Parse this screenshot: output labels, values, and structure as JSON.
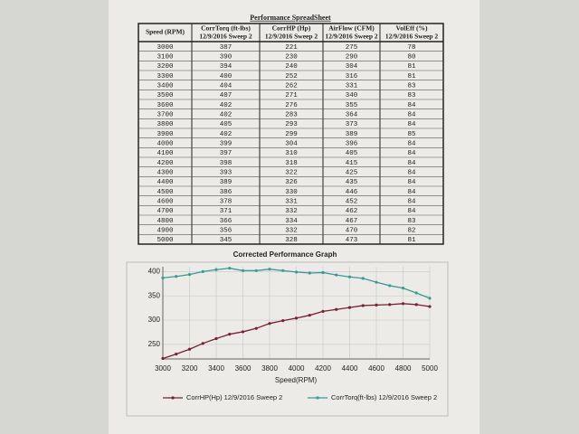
{
  "table": {
    "title": "Performance SpreadSheet",
    "columns": [
      {
        "name": "Speed (RPM)"
      },
      {
        "name": "CorrTorq (ft-lbs)",
        "sub": "12/9/2016 Sweep 2"
      },
      {
        "name": "CorrHP (Hp)",
        "sub": "12/9/2016 Sweep 2"
      },
      {
        "name": "AirFlow (CFM)",
        "sub": "12/9/2016 Sweep 2"
      },
      {
        "name": "VolEff (%)",
        "sub": "12/9/2016 Sweep 2"
      }
    ],
    "rows": [
      [
        3000,
        387,
        221,
        275,
        78
      ],
      [
        3100,
        390,
        230,
        290,
        80
      ],
      [
        3200,
        394,
        240,
        304,
        81
      ],
      [
        3300,
        400,
        252,
        316,
        81
      ],
      [
        3400,
        404,
        262,
        331,
        83
      ],
      [
        3500,
        407,
        271,
        340,
        83
      ],
      [
        3600,
        402,
        276,
        355,
        84
      ],
      [
        3700,
        402,
        283,
        364,
        84
      ],
      [
        3800,
        405,
        293,
        373,
        84
      ],
      [
        3900,
        402,
        299,
        389,
        85
      ],
      [
        4000,
        399,
        304,
        396,
        84
      ],
      [
        4100,
        397,
        310,
        405,
        84
      ],
      [
        4200,
        398,
        318,
        415,
        84
      ],
      [
        4300,
        393,
        322,
        425,
        84
      ],
      [
        4400,
        389,
        326,
        435,
        84
      ],
      [
        4500,
        386,
        330,
        446,
        84
      ],
      [
        4600,
        378,
        331,
        452,
        84
      ],
      [
        4700,
        371,
        332,
        462,
        84
      ],
      [
        4800,
        366,
        334,
        467,
        83
      ],
      [
        4900,
        356,
        332,
        470,
        82
      ],
      [
        5000,
        345,
        328,
        473,
        81
      ]
    ]
  },
  "chart_data": {
    "type": "line",
    "title": "Corrected Performance Graph",
    "x_label": "Speed(RPM)",
    "x": [
      3000,
      3100,
      3200,
      3300,
      3400,
      3500,
      3600,
      3700,
      3800,
      3900,
      4000,
      4100,
      4200,
      4300,
      4400,
      4500,
      4600,
      4700,
      4800,
      4900,
      5000
    ],
    "series": [
      {
        "name": "CorrHP(Hp) 12/9/2016 Sweep 2",
        "color": "#7a1f2e",
        "values": [
          221,
          230,
          240,
          252,
          262,
          271,
          276,
          283,
          293,
          299,
          304,
          310,
          318,
          322,
          326,
          330,
          331,
          332,
          334,
          332,
          328
        ]
      },
      {
        "name": "CorrTorq(ft-lbs) 12/9/2016 Sweep 2",
        "color": "#3a9a96",
        "values": [
          387,
          390,
          394,
          400,
          404,
          407,
          402,
          402,
          405,
          402,
          399,
          397,
          398,
          393,
          389,
          386,
          378,
          371,
          366,
          356,
          345
        ]
      }
    ],
    "xlim": [
      3000,
      5000
    ],
    "xticks": [
      3000,
      3200,
      3400,
      3600,
      3800,
      4000,
      4200,
      4400,
      4600,
      4800,
      5000
    ],
    "ylim": [
      220,
      410
    ],
    "yticks": [
      250,
      300,
      350,
      400
    ],
    "grid": true
  }
}
